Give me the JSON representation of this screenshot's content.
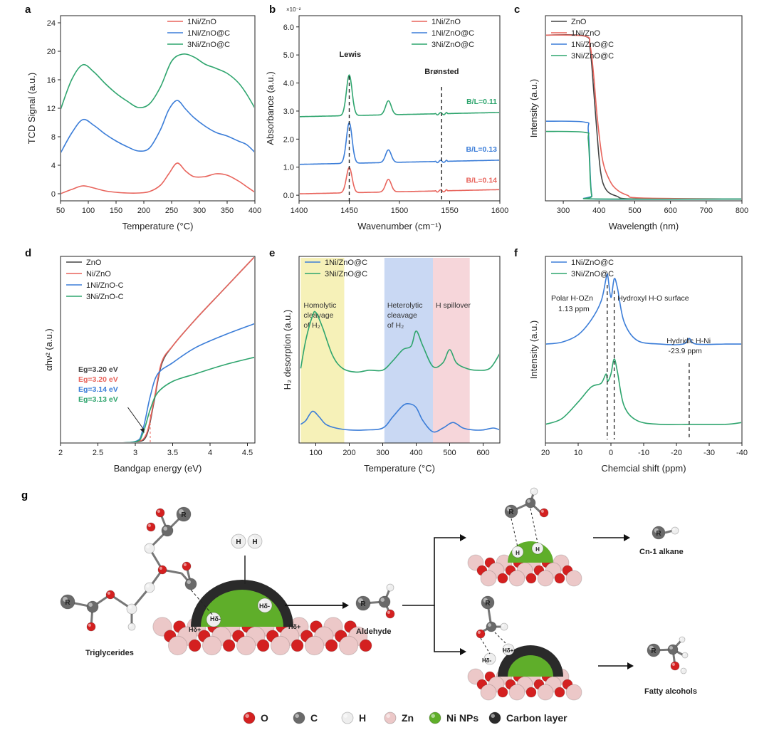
{
  "colors": {
    "red": "#e8645c",
    "blue": "#3b7dd8",
    "green": "#2fa56e",
    "black": "#444444",
    "yellow_band": "#f6f1b8",
    "blue_band": "#c9d8f3",
    "pink_band": "#f6d6da",
    "o_atom": "#d42020",
    "c_atom": "#6a6a6a",
    "h_atom": "#eeeeee",
    "zn_atom": "#ecc8c8",
    "ni_np": "#5fae2a",
    "carbon_layer": "#2a2a2a"
  },
  "chart_data": [
    {
      "panel": "a",
      "type": "line",
      "xlabel": "Temperature (°C)",
      "ylabel": "TCD Signal (a.u.)",
      "xlim": [
        50,
        400
      ],
      "ylim": [
        -1,
        25
      ],
      "xticks": [
        50,
        100,
        150,
        200,
        250,
        300,
        350,
        400
      ],
      "yticks": [
        0,
        4,
        8,
        12,
        16,
        20,
        24
      ],
      "legend": [
        "1Ni/ZnO",
        "1Ni/ZnO@C",
        "3Ni/ZnO@C"
      ],
      "series": [
        {
          "name": "1Ni/ZnO",
          "color": "red",
          "x": [
            50,
            70,
            90,
            110,
            130,
            150,
            170,
            190,
            210,
            230,
            245,
            260,
            275,
            290,
            310,
            330,
            350,
            370,
            385,
            400
          ],
          "y": [
            0,
            0.6,
            1.1,
            0.8,
            0.4,
            0.2,
            0.1,
            0.1,
            0.3,
            1.2,
            2.8,
            4.3,
            3.2,
            2.4,
            2.4,
            2.8,
            2.6,
            1.8,
            1.0,
            0.2
          ]
        },
        {
          "name": "1Ni/ZnO@C",
          "color": "blue",
          "x": [
            50,
            70,
            90,
            110,
            130,
            150,
            170,
            190,
            210,
            230,
            245,
            260,
            275,
            290,
            310,
            330,
            350,
            370,
            385,
            400
          ],
          "y": [
            5.7,
            8.5,
            10.4,
            9.6,
            8.4,
            7.4,
            6.6,
            6.0,
            6.4,
            9.0,
            11.8,
            13.1,
            11.9,
            10.7,
            9.5,
            8.6,
            8.1,
            7.4,
            6.9,
            5.8
          ]
        },
        {
          "name": "3Ni/ZnO@C",
          "color": "green",
          "x": [
            50,
            70,
            90,
            110,
            130,
            150,
            170,
            190,
            210,
            230,
            250,
            270,
            290,
            310,
            330,
            350,
            370,
            385,
            400
          ],
          "y": [
            11.8,
            16.0,
            18.1,
            17.1,
            15.5,
            14.1,
            13.0,
            12.1,
            12.6,
            15.0,
            18.6,
            19.6,
            19.2,
            18.2,
            17.6,
            16.9,
            15.6,
            14.0,
            12.0
          ]
        }
      ]
    },
    {
      "panel": "b",
      "type": "line",
      "xlabel": "Wavenumber (cm⁻¹)",
      "ylabel": "Absorbance (a.u.)",
      "yunit": "×10⁻²",
      "xlim": [
        1400,
        1600
      ],
      "ylim": [
        -0.2,
        6.4
      ],
      "xticks": [
        1400,
        1450,
        1500,
        1550,
        1600
      ],
      "yticks": [
        0.0,
        1.0,
        2.0,
        3.0,
        4.0,
        5.0,
        6.0
      ],
      "legend": [
        "1Ni/ZnO",
        "1Ni/ZnO@C",
        "3Ni/ZnO@C"
      ],
      "annotations": {
        "lewis": "Lewis",
        "bronsted": "Brønsted",
        "bl_green": "B/L=0.11",
        "bl_blue": "B/L=0.13",
        "bl_red": "B/L=0.14"
      },
      "lewis_x": 1450,
      "bronsted_x": 1542,
      "series": [
        {
          "name": "1Ni/ZnO",
          "color": "red",
          "baseline": 0.05,
          "peaks": [
            [
              1450,
              0.9,
              4
            ],
            [
              1489,
              0.45,
              4
            ]
          ],
          "tail": 0.15
        },
        {
          "name": "1Ni/ZnO@C",
          "color": "blue",
          "baseline": 1.1,
          "peaks": [
            [
              1450,
              1.45,
              4
            ],
            [
              1489,
              0.45,
              4
            ]
          ],
          "tail": 0.15
        },
        {
          "name": "3Ni/ZnO@C",
          "color": "green",
          "baseline": 2.8,
          "peaks": [
            [
              1450,
              1.45,
              4
            ],
            [
              1489,
              0.5,
              4
            ]
          ],
          "tail": 0.15
        }
      ]
    },
    {
      "panel": "c",
      "type": "line",
      "xlabel": "Wavelength (nm)",
      "ylabel": "Intensity (a.u.)",
      "xlim": [
        250,
        800
      ],
      "ylim": [
        0,
        1.0
      ],
      "xticks": [
        300,
        400,
        500,
        600,
        700,
        800
      ],
      "legend": [
        "ZnO",
        "1Ni/ZnO",
        "1Ni/ZnO@C",
        "3Ni/ZnO@C"
      ],
      "series": [
        {
          "name": "ZnO",
          "color": "black",
          "x": [
            250,
            360,
            375,
            385,
            395,
            405,
            420,
            450,
            500,
            800
          ],
          "y": [
            0.895,
            0.89,
            0.82,
            0.6,
            0.35,
            0.15,
            0.06,
            0.025,
            0.01,
            0.01
          ]
        },
        {
          "name": "1Ni/ZnO",
          "color": "red",
          "x": [
            250,
            360,
            375,
            385,
            395,
            410,
            430,
            450,
            480,
            520,
            800
          ],
          "y": [
            0.895,
            0.89,
            0.84,
            0.68,
            0.45,
            0.22,
            0.11,
            0.06,
            0.03,
            0.015,
            0.01
          ]
        },
        {
          "name": "1Ni/ZnO@C",
          "color": "blue",
          "x": [
            250,
            360,
            370,
            376,
            380,
            390,
            800
          ],
          "y": [
            0.43,
            0.425,
            0.38,
            0.12,
            0.03,
            0.01,
            0.01
          ]
        },
        {
          "name": "3Ni/ZnO@C",
          "color": "green",
          "x": [
            250,
            360,
            370,
            376,
            380,
            390,
            800
          ],
          "y": [
            0.375,
            0.37,
            0.33,
            0.1,
            0.025,
            0.01,
            0.01
          ]
        }
      ]
    },
    {
      "panel": "d",
      "type": "line",
      "xlabel": "Bandgap energy (eV)",
      "ylabel": "αhν² (a.u.)",
      "xlim": [
        2.0,
        4.6
      ],
      "ylim": [
        0,
        1.0
      ],
      "xticks": [
        2.0,
        2.5,
        3.0,
        3.5,
        4.0,
        4.5
      ],
      "legend": [
        "ZnO",
        "Ni/ZnO",
        "1Ni/ZnO-C",
        "3Ni/ZnO-C"
      ],
      "annotations": {
        "eg_black": "Eg=3.20 eV",
        "eg_red": "Eg=3.20 eV",
        "eg_blue": "Eg=3.14 eV",
        "eg_green": "Eg=3.13 eV"
      },
      "series": [
        {
          "name": "ZnO",
          "color": "black",
          "x": [
            2.6,
            3.0,
            3.15,
            3.25,
            3.35,
            3.5,
            3.8,
            4.2,
            4.6
          ],
          "y": [
            0,
            0.005,
            0.04,
            0.22,
            0.42,
            0.52,
            0.66,
            0.83,
            1.0
          ]
        },
        {
          "name": "Ni/ZnO",
          "color": "red",
          "x": [
            2.6,
            3.0,
            3.15,
            3.25,
            3.35,
            3.5,
            3.8,
            4.2,
            4.6
          ],
          "y": [
            0,
            0.005,
            0.05,
            0.23,
            0.43,
            0.52,
            0.66,
            0.83,
            1.0
          ]
        },
        {
          "name": "1Ni/ZnO-C",
          "color": "blue",
          "x": [
            2.6,
            3.0,
            3.1,
            3.2,
            3.3,
            3.5,
            3.8,
            4.2,
            4.6
          ],
          "y": [
            0,
            0.008,
            0.07,
            0.25,
            0.37,
            0.43,
            0.51,
            0.58,
            0.64
          ]
        },
        {
          "name": "3Ni/ZnO-C",
          "color": "green",
          "x": [
            2.6,
            3.0,
            3.1,
            3.2,
            3.3,
            3.5,
            3.8,
            4.2,
            4.6
          ],
          "y": [
            0,
            0.006,
            0.05,
            0.18,
            0.27,
            0.33,
            0.37,
            0.42,
            0.46
          ]
        }
      ]
    },
    {
      "panel": "e",
      "type": "line",
      "xlabel": "Temperature (°C)",
      "ylabel": "H₂ desorption (a.u.)",
      "xlim": [
        50,
        650
      ],
      "ylim": [
        0,
        1.0
      ],
      "xticks": [
        100,
        200,
        300,
        400,
        500,
        600
      ],
      "legend": [
        "1Ni/ZnO@C",
        "3Ni/ZnO@C"
      ],
      "bands": [
        {
          "label": "Homolytic cleavage of H₂",
          "from": 55,
          "to": 185,
          "color": "yellow_band"
        },
        {
          "label": "Heterolytic cleavage of H₂",
          "from": 305,
          "to": 450,
          "color": "blue_band"
        },
        {
          "label": "H spillover",
          "from": 450,
          "to": 560,
          "color": "pink_band"
        }
      ],
      "series": [
        {
          "name": "1Ni/ZnO@C",
          "color": "blue",
          "x": [
            55,
            70,
            90,
            110,
            130,
            160,
            200,
            250,
            300,
            330,
            360,
            380,
            400,
            420,
            450,
            480,
            510,
            540,
            570,
            600,
            630,
            650
          ],
          "y": [
            0.1,
            0.12,
            0.17,
            0.14,
            0.1,
            0.08,
            0.07,
            0.07,
            0.08,
            0.14,
            0.2,
            0.21,
            0.19,
            0.12,
            0.06,
            0.08,
            0.11,
            0.08,
            0.07,
            0.07,
            0.08,
            0.07
          ]
        },
        {
          "name": "3Ni/ZnO@C",
          "color": "green",
          "x": [
            55,
            70,
            90,
            100,
            120,
            150,
            180,
            220,
            260,
            300,
            330,
            360,
            385,
            400,
            420,
            450,
            480,
            500,
            520,
            550,
            580,
            620,
            650
          ],
          "y": [
            0.4,
            0.55,
            0.68,
            0.7,
            0.62,
            0.47,
            0.4,
            0.38,
            0.39,
            0.39,
            0.44,
            0.5,
            0.52,
            0.6,
            0.52,
            0.41,
            0.43,
            0.5,
            0.43,
            0.4,
            0.39,
            0.4,
            0.48
          ]
        }
      ]
    },
    {
      "panel": "f",
      "type": "line",
      "xlabel": "Chemcial shift (ppm)",
      "ylabel": "Intensity (a.u.)",
      "xlim": [
        20,
        -40
      ],
      "ylim": [
        0,
        1.0
      ],
      "xticks": [
        20,
        10,
        0,
        -10,
        -20,
        -30,
        -40
      ],
      "legend": [
        "1Ni/ZnO@C",
        "3Ni/ZnO@C"
      ],
      "annotations": {
        "polar": "Polar H-OZn",
        "polar_ppm": "1.13 ppm",
        "hydroxyl": "Hydroxyl H-O surface",
        "hydridic": "Hydridic H-Ni",
        "hydridic_ppm": "-23.9 ppm"
      },
      "series": [
        {
          "name": "1Ni/ZnO@C",
          "color": "blue",
          "x": [
            20,
            15,
            10,
            6,
            3,
            1.5,
            1,
            0,
            -1,
            -2,
            -4,
            -8,
            -15,
            -22,
            -23.9,
            -26,
            -35,
            -40
          ],
          "y": [
            0.53,
            0.54,
            0.58,
            0.66,
            0.76,
            0.88,
            0.9,
            0.78,
            0.88,
            0.83,
            0.65,
            0.55,
            0.53,
            0.53,
            0.56,
            0.53,
            0.53,
            0.53
          ]
        },
        {
          "name": "3Ni/ZnO@C",
          "color": "green",
          "x": [
            20,
            15,
            10,
            6,
            3,
            1.5,
            1,
            0,
            -1,
            -2,
            -4,
            -8,
            -15,
            -25,
            -35,
            -40
          ],
          "y": [
            0.1,
            0.13,
            0.22,
            0.3,
            0.32,
            0.37,
            0.33,
            0.37,
            0.45,
            0.38,
            0.2,
            0.12,
            0.1,
            0.1,
            0.1,
            0.11
          ]
        }
      ]
    }
  ],
  "panel_labels": [
    "a",
    "b",
    "c",
    "d",
    "e",
    "f",
    "g"
  ],
  "scheme": {
    "triglycerides": "Triglycerides",
    "aldehyde": "Aldehyde",
    "alkane": "Cn-1 alkane",
    "fatty_alcohols": "Fatty alcohols",
    "r": "R",
    "h": "H",
    "h_delta_minus": "Hδ-",
    "h_delta_plus": "Hδ+",
    "legend": [
      "O",
      "C",
      "H",
      "Zn",
      "Ni NPs",
      "Carbon layer"
    ]
  }
}
